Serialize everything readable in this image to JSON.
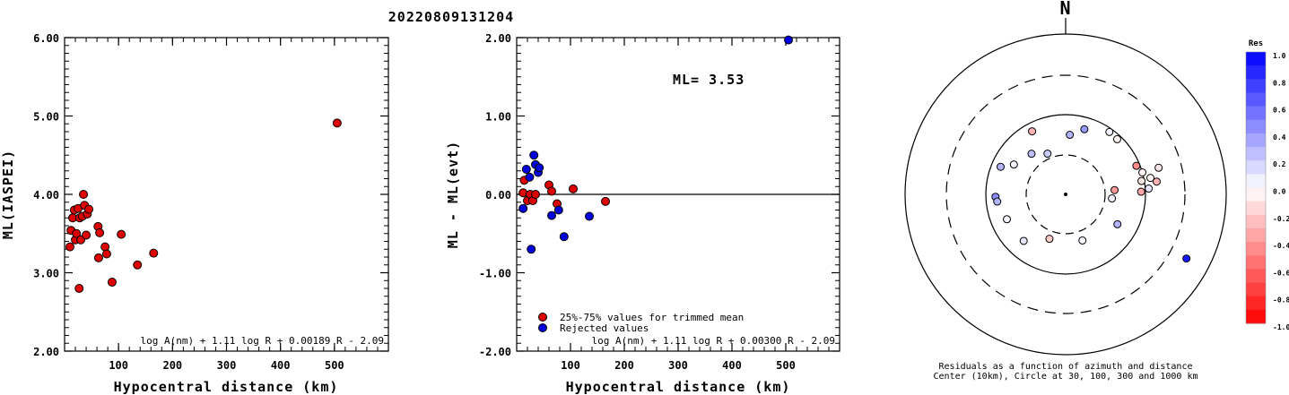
{
  "title": "20220809131204",
  "colors": {
    "trimmed": "#dd0000",
    "rejected": "#0000dd",
    "residual_positive": "#0000ff",
    "residual_negative": "#ff0000"
  },
  "chart_data": [
    {
      "type": "scatter",
      "xlabel": "Hypocentral distance (km)",
      "ylabel": "ML(IASPEI)",
      "xlim": [
        0,
        600
      ],
      "ylim": [
        2.0,
        6.0
      ],
      "xticks": [
        "100",
        "200",
        "300",
        "400",
        "500"
      ],
      "yticks": [
        "2.00",
        "3.00",
        "4.00",
        "5.00",
        "6.00"
      ],
      "formula": "log A(nm) + 1.11 log R + 0.00189 R - 2.09",
      "series": [
        {
          "points": [
            [
              10,
              3.33
            ],
            [
              12,
              3.54
            ],
            [
              15,
              3.7
            ],
            [
              18,
              3.8
            ],
            [
              20,
              3.42
            ],
            [
              22,
              3.5
            ],
            [
              25,
              3.82
            ],
            [
              27,
              2.8
            ],
            [
              28,
              3.7
            ],
            [
              30,
              3.42
            ],
            [
              33,
              3.72
            ],
            [
              35,
              4.0
            ],
            [
              37,
              3.86
            ],
            [
              40,
              3.48
            ],
            [
              42,
              3.75
            ],
            [
              45,
              3.81
            ],
            [
              62,
              3.59
            ],
            [
              63,
              3.19
            ],
            [
              65,
              3.51
            ],
            [
              75,
              3.33
            ],
            [
              78,
              3.24
            ],
            [
              88,
              2.88
            ],
            [
              105,
              3.49
            ],
            [
              135,
              3.1
            ],
            [
              165,
              3.25
            ],
            [
              505,
              4.91
            ]
          ]
        }
      ]
    },
    {
      "type": "scatter",
      "xlabel": "Hypocentral distance (km)",
      "ylabel": "ML - ML(evt)",
      "xlim": [
        0,
        600
      ],
      "ylim": [
        -2.0,
        2.0
      ],
      "xticks": [
        "100",
        "200",
        "300",
        "400",
        "500"
      ],
      "yticks": [
        "-2.00",
        "-1.00",
        "0.00",
        "1.00",
        "2.00"
      ],
      "annotation": "ML= 3.53",
      "formula": "log A(nm) + 1.11 log R + 0.00300 R - 2.09",
      "series": [
        {
          "name": "25%-75% values for trimmed mean",
          "points": [
            [
              12,
              0.02
            ],
            [
              14,
              0.18
            ],
            [
              20,
              -0.08
            ],
            [
              25,
              0.0
            ],
            [
              30,
              -0.08
            ],
            [
              35,
              0.0
            ],
            [
              60,
              0.12
            ],
            [
              65,
              0.04
            ],
            [
              75,
              -0.12
            ],
            [
              105,
              0.07
            ],
            [
              165,
              -0.09
            ]
          ]
        },
        {
          "name": "Rejected values",
          "points": [
            [
              12,
              -0.18
            ],
            [
              18,
              0.32
            ],
            [
              24,
              0.22
            ],
            [
              27,
              -0.7
            ],
            [
              32,
              0.5
            ],
            [
              35,
              0.38
            ],
            [
              40,
              0.28
            ],
            [
              42,
              0.34
            ],
            [
              65,
              -0.27
            ],
            [
              78,
              -0.2
            ],
            [
              88,
              -0.54
            ],
            [
              135,
              -0.28
            ],
            [
              505,
              1.97
            ]
          ]
        }
      ]
    },
    {
      "type": "scatter",
      "title": "Residuals as a function of azimuth and distance",
      "subtitle": "Center (10km), Circle at 30, 100, 300 and 1000 km",
      "north_label": "N",
      "rings_km": [
        30,
        100,
        300,
        1000
      ],
      "colorbar": {
        "title": "Res",
        "ticks": [
          "1.0",
          "0.8",
          "0.6",
          "0.4",
          "0.2",
          "0.0",
          "-0.2",
          "-0.4",
          "-0.6",
          "-0.8",
          "-1.0"
        ]
      },
      "stations": [
        {
          "azimuth": 332,
          "distance_km": 78,
          "residual": -0.3
        },
        {
          "azimuth": 16,
          "distance_km": 70,
          "residual": 0.4
        },
        {
          "azimuth": 4,
          "distance_km": 55,
          "residual": 0.3
        },
        {
          "azimuth": 35,
          "distance_km": 90,
          "residual": 0.05
        },
        {
          "azimuth": 43,
          "distance_km": 88,
          "residual": -0.05
        },
        {
          "azimuth": 293,
          "distance_km": 76,
          "residual": 0.3
        },
        {
          "azimuth": 300,
          "distance_km": 55,
          "residual": 0.05
        },
        {
          "azimuth": 320,
          "distance_km": 45,
          "residual": 0.25
        },
        {
          "azimuth": 336,
          "distance_km": 35,
          "residual": 0.2
        },
        {
          "azimuth": 268,
          "distance_km": 75,
          "residual": 0.45
        },
        {
          "azimuth": 264,
          "distance_km": 72,
          "residual": 0.3
        },
        {
          "azimuth": 247,
          "distance_km": 62,
          "residual": 0.05
        },
        {
          "azimuth": 222,
          "distance_km": 60,
          "residual": 0.1
        },
        {
          "azimuth": 68,
          "distance_km": 90,
          "residual": -0.45
        },
        {
          "azimuth": 74,
          "distance_km": 100,
          "residual": -0.05
        },
        {
          "azimuth": 80,
          "distance_km": 92,
          "residual": -0.1
        },
        {
          "azimuth": 86,
          "distance_km": 110,
          "residual": 0.1
        },
        {
          "azimuth": 88,
          "distance_km": 88,
          "residual": -0.35
        },
        {
          "azimuth": 79,
          "distance_km": 120,
          "residual": -0.05
        },
        {
          "azimuth": 82,
          "distance_km": 140,
          "residual": -0.3
        },
        {
          "azimuth": 74,
          "distance_km": 160,
          "residual": -0.1
        },
        {
          "azimuth": 85,
          "distance_km": 40,
          "residual": -0.4
        },
        {
          "azimuth": 95,
          "distance_km": 37,
          "residual": 0.05
        },
        {
          "azimuth": 160,
          "distance_km": 40,
          "residual": 0.02
        },
        {
          "azimuth": 200,
          "distance_km": 38,
          "residual": -0.2
        },
        {
          "azimuth": 120,
          "distance_km": 55,
          "residual": 0.3
        },
        {
          "azimuth": 118,
          "distance_km": 500,
          "residual": 0.9
        }
      ]
    }
  ]
}
